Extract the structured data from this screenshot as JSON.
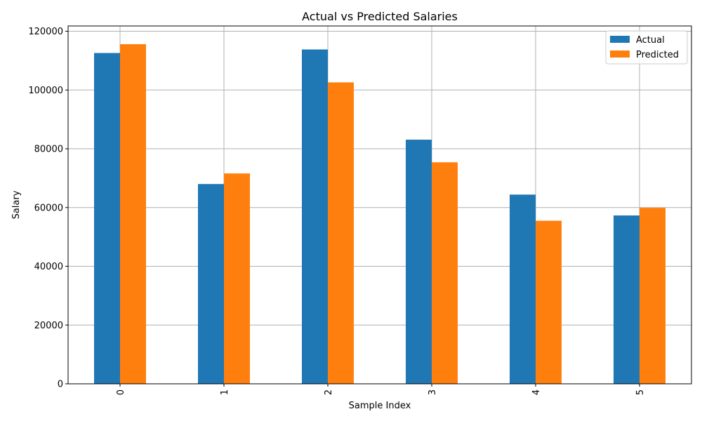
{
  "chart_data": {
    "type": "bar",
    "title": "Actual vs Predicted Salaries",
    "xlabel": "Sample Index",
    "ylabel": "Salary",
    "categories": [
      "0",
      "1",
      "2",
      "3",
      "4",
      "5"
    ],
    "series": [
      {
        "name": "Actual",
        "color": "#1f77b4",
        "values": [
          112600,
          68000,
          113800,
          83100,
          64400,
          57300
        ]
      },
      {
        "name": "Predicted",
        "color": "#ff7f0e",
        "values": [
          115600,
          71600,
          102600,
          75400,
          55500,
          59900
        ]
      }
    ],
    "ylim": [
      0,
      121800
    ],
    "yticks": [
      0,
      20000,
      40000,
      60000,
      80000,
      100000,
      120000
    ],
    "grid": true,
    "legend_position": "top-right",
    "xtick_rotation": "vertical"
  }
}
